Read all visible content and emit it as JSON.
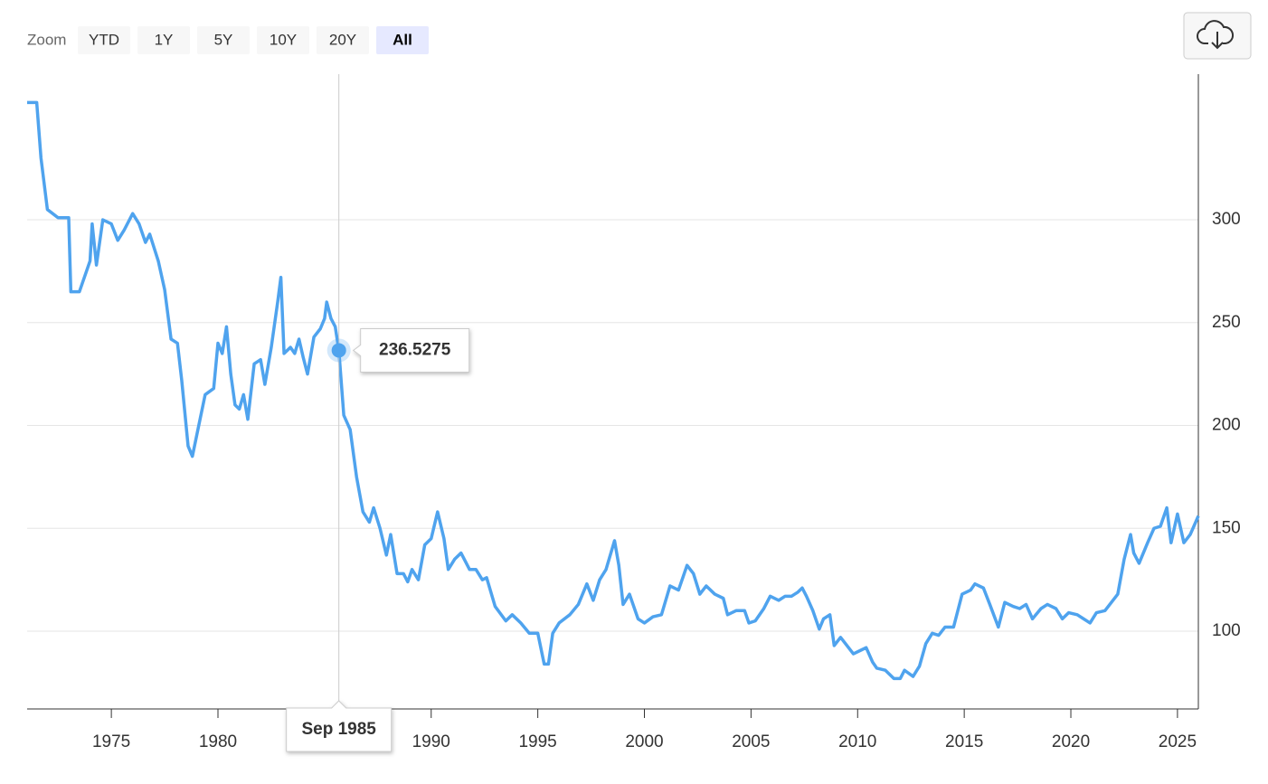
{
  "zoom": {
    "label": "Zoom",
    "buttons": [
      "YTD",
      "1Y",
      "5Y",
      "10Y",
      "20Y",
      "All"
    ],
    "selected": "All"
  },
  "chart_data": {
    "type": "line",
    "color": "#4fa3ee",
    "x": [
      1971.05,
      1971.5,
      1971.7,
      1972.0,
      1972.5,
      1973.0,
      1973.1,
      1973.5,
      1974.0,
      1974.1,
      1974.3,
      1974.6,
      1975.0,
      1975.3,
      1975.6,
      1976.0,
      1976.3,
      1976.6,
      1976.8,
      1977.2,
      1977.5,
      1977.8,
      1978.1,
      1978.3,
      1978.6,
      1978.8,
      1979.0,
      1979.4,
      1979.8,
      1980.0,
      1980.2,
      1980.4,
      1980.6,
      1980.8,
      1981.0,
      1981.2,
      1981.4,
      1981.7,
      1982.0,
      1982.2,
      1982.5,
      1982.8,
      1982.95,
      1983.1,
      1983.4,
      1983.6,
      1983.8,
      1984.0,
      1984.2,
      1984.5,
      1984.8,
      1985.0,
      1985.1,
      1985.3,
      1985.5,
      1985.67,
      1985.9,
      1986.2,
      1986.5,
      1986.8,
      1987.1,
      1987.3,
      1987.6,
      1987.9,
      1988.1,
      1988.4,
      1988.7,
      1988.9,
      1989.1,
      1989.4,
      1989.7,
      1990.0,
      1990.3,
      1990.6,
      1990.8,
      1991.1,
      1991.4,
      1991.8,
      1992.1,
      1992.4,
      1992.6,
      1993.0,
      1993.5,
      1993.8,
      1994.2,
      1994.6,
      1995.0,
      1995.3,
      1995.5,
      1995.7,
      1996.0,
      1996.5,
      1996.9,
      1997.3,
      1997.6,
      1997.9,
      1998.2,
      1998.6,
      1998.8,
      1999.0,
      1999.3,
      1999.7,
      2000.0,
      2000.4,
      2000.8,
      2001.2,
      2001.6,
      2002.0,
      2002.3,
      2002.6,
      2002.9,
      2003.3,
      2003.7,
      2003.9,
      2004.3,
      2004.7,
      2004.9,
      2005.2,
      2005.6,
      2005.9,
      2006.3,
      2006.6,
      2006.9,
      2007.2,
      2007.4,
      2007.6,
      2007.9,
      2008.2,
      2008.4,
      2008.7,
      2008.9,
      2009.2,
      2009.5,
      2009.8,
      2010.2,
      2010.4,
      2010.7,
      2010.9,
      2011.3,
      2011.7,
      2012.0,
      2012.2,
      2012.6,
      2012.9,
      2013.2,
      2013.5,
      2013.8,
      2014.1,
      2014.5,
      2014.9,
      2015.3,
      2015.5,
      2015.9,
      2016.2,
      2016.6,
      2016.9,
      2017.3,
      2017.6,
      2017.9,
      2018.2,
      2018.6,
      2018.9,
      2019.3,
      2019.6,
      2019.9,
      2020.3,
      2020.6,
      2020.9,
      2021.2,
      2021.6,
      2021.9,
      2022.2,
      2022.5,
      2022.8,
      2022.95,
      2023.2,
      2023.6,
      2023.9,
      2024.2,
      2024.5,
      2024.7,
      2025.0,
      2025.3,
      2025.6,
      2025.98
    ],
    "values": [
      357,
      357,
      330,
      305,
      301,
      301,
      265,
      265,
      280,
      298,
      278,
      300,
      298,
      290,
      295,
      303,
      298,
      289,
      293,
      280,
      266,
      242,
      240,
      222,
      190,
      185,
      195,
      215,
      218,
      240,
      235,
      248,
      225,
      210,
      208,
      215,
      203,
      230,
      232,
      220,
      238,
      260,
      272,
      235,
      238,
      235,
      242,
      233,
      225,
      243,
      247,
      252,
      260,
      252,
      248,
      236.5275,
      205,
      198,
      175,
      158,
      153,
      160,
      150,
      137,
      147,
      128,
      128,
      124,
      130,
      125,
      142,
      145,
      158,
      145,
      130,
      135,
      138,
      130,
      130,
      125,
      126,
      112,
      105,
      108,
      104,
      99,
      99,
      84,
      84,
      99,
      104,
      108,
      113,
      123,
      115,
      125,
      130,
      144,
      132,
      113,
      118,
      106,
      104,
      107,
      108,
      122,
      120,
      132,
      128,
      118,
      122,
      118,
      116,
      108,
      110,
      110,
      104,
      105,
      111,
      117,
      115,
      117,
      117,
      119,
      121,
      117,
      110,
      101,
      106,
      108,
      93,
      97,
      93,
      89,
      91,
      92,
      85,
      82,
      81,
      77,
      77,
      81,
      78,
      83,
      94,
      99,
      98,
      102,
      102,
      118,
      120,
      123,
      121,
      113,
      102,
      114,
      112,
      111,
      113,
      106,
      111,
      113,
      111,
      106,
      109,
      108,
      106,
      104,
      109,
      110,
      114,
      118,
      135,
      147,
      138,
      133,
      143,
      150,
      151,
      160,
      143,
      157,
      143,
      147,
      156
    ],
    "xlim": [
      1971.05,
      2025.98
    ],
    "ylim": [
      62.2,
      370.8
    ],
    "xticks": [
      1975,
      1980,
      1985,
      1990,
      1995,
      2000,
      2005,
      2010,
      2015,
      2020,
      2025
    ],
    "yticks": [
      100,
      150,
      200,
      250,
      300
    ],
    "grid": true,
    "tooltip": {
      "x": 1985.67,
      "x_label": "Sep 1985",
      "y": 236.5275
    }
  }
}
